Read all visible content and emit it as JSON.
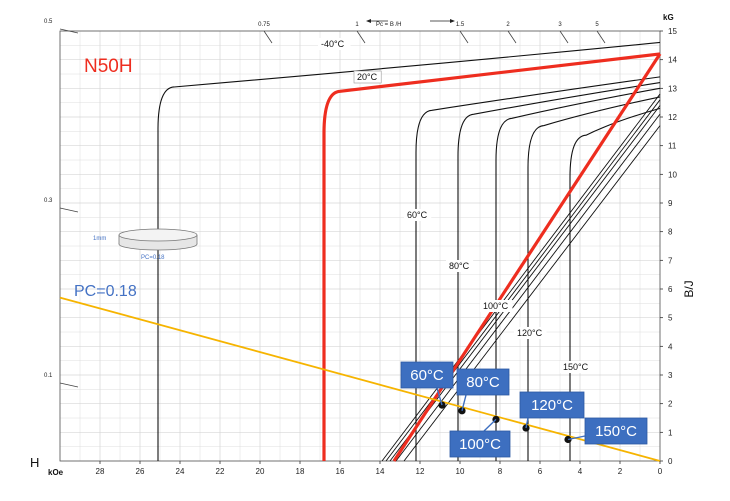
{
  "chart_data": {
    "type": "line",
    "title": "N50H",
    "x_axis": {
      "unit_label": "kOe",
      "ticks": [
        "28",
        "26",
        "24",
        "22",
        "20",
        "18",
        "16",
        "14",
        "12",
        "10",
        "8",
        "6",
        "4",
        "2",
        "0"
      ],
      "range": [
        30,
        0
      ],
      "side_label": "H"
    },
    "y_axis": {
      "unit_label": "kG",
      "ticks": [
        "0",
        "1",
        "2",
        "3",
        "4",
        "5",
        "6",
        "7",
        "8",
        "9",
        "10",
        "11",
        "12",
        "13",
        "14",
        "15"
      ],
      "range": [
        0,
        15
      ],
      "title": "B/J"
    },
    "left_scale_ticks": [
      "0.5",
      "0.3",
      "0.1"
    ],
    "top_pc_scale": {
      "label": "Pc = B /H",
      "ticks": [
        "0.75",
        "1",
        "1.5",
        "2",
        "3",
        "5"
      ]
    },
    "grid": true,
    "curves": [
      {
        "label": "-40°C",
        "knee_h": 25.1,
        "br": 14.6
      },
      {
        "label": "20°C",
        "knee_h": 16.8,
        "br": 14.2
      },
      {
        "label": "60°C",
        "knee_h": 12.2,
        "br": 13.4
      },
      {
        "label": "80°C",
        "knee_h": 10.1,
        "br": 13.2
      },
      {
        "label": "100°C",
        "knee_h": 8.2,
        "br": 13.0
      },
      {
        "label": "120°C",
        "knee_h": 6.6,
        "br": 12.7
      },
      {
        "label": "150°C",
        "knee_h": 4.5,
        "br": 12.3
      }
    ],
    "load_line": {
      "label": "PC=0.18",
      "h_at_b0": 0,
      "b_at_h30": 5.7
    },
    "operating_points": [
      {
        "label": "60°C",
        "h": 10.9,
        "b": 1.95
      },
      {
        "label": "80°C",
        "h": 9.9,
        "b": 1.75
      },
      {
        "label": "100°C",
        "h": 8.2,
        "b": 1.45
      },
      {
        "label": "120°C",
        "h": 6.7,
        "b": 1.15
      },
      {
        "label": "150°C",
        "h": 4.6,
        "b": 0.75
      }
    ],
    "inset": {
      "thickness_label": "1mm",
      "pc_label": "PC=0.18"
    }
  },
  "colors": {
    "highlight": "#ee2d1f",
    "load_line": "#f6b400",
    "callout": "#3d6fc0",
    "pc_text": "#4472c4"
  }
}
